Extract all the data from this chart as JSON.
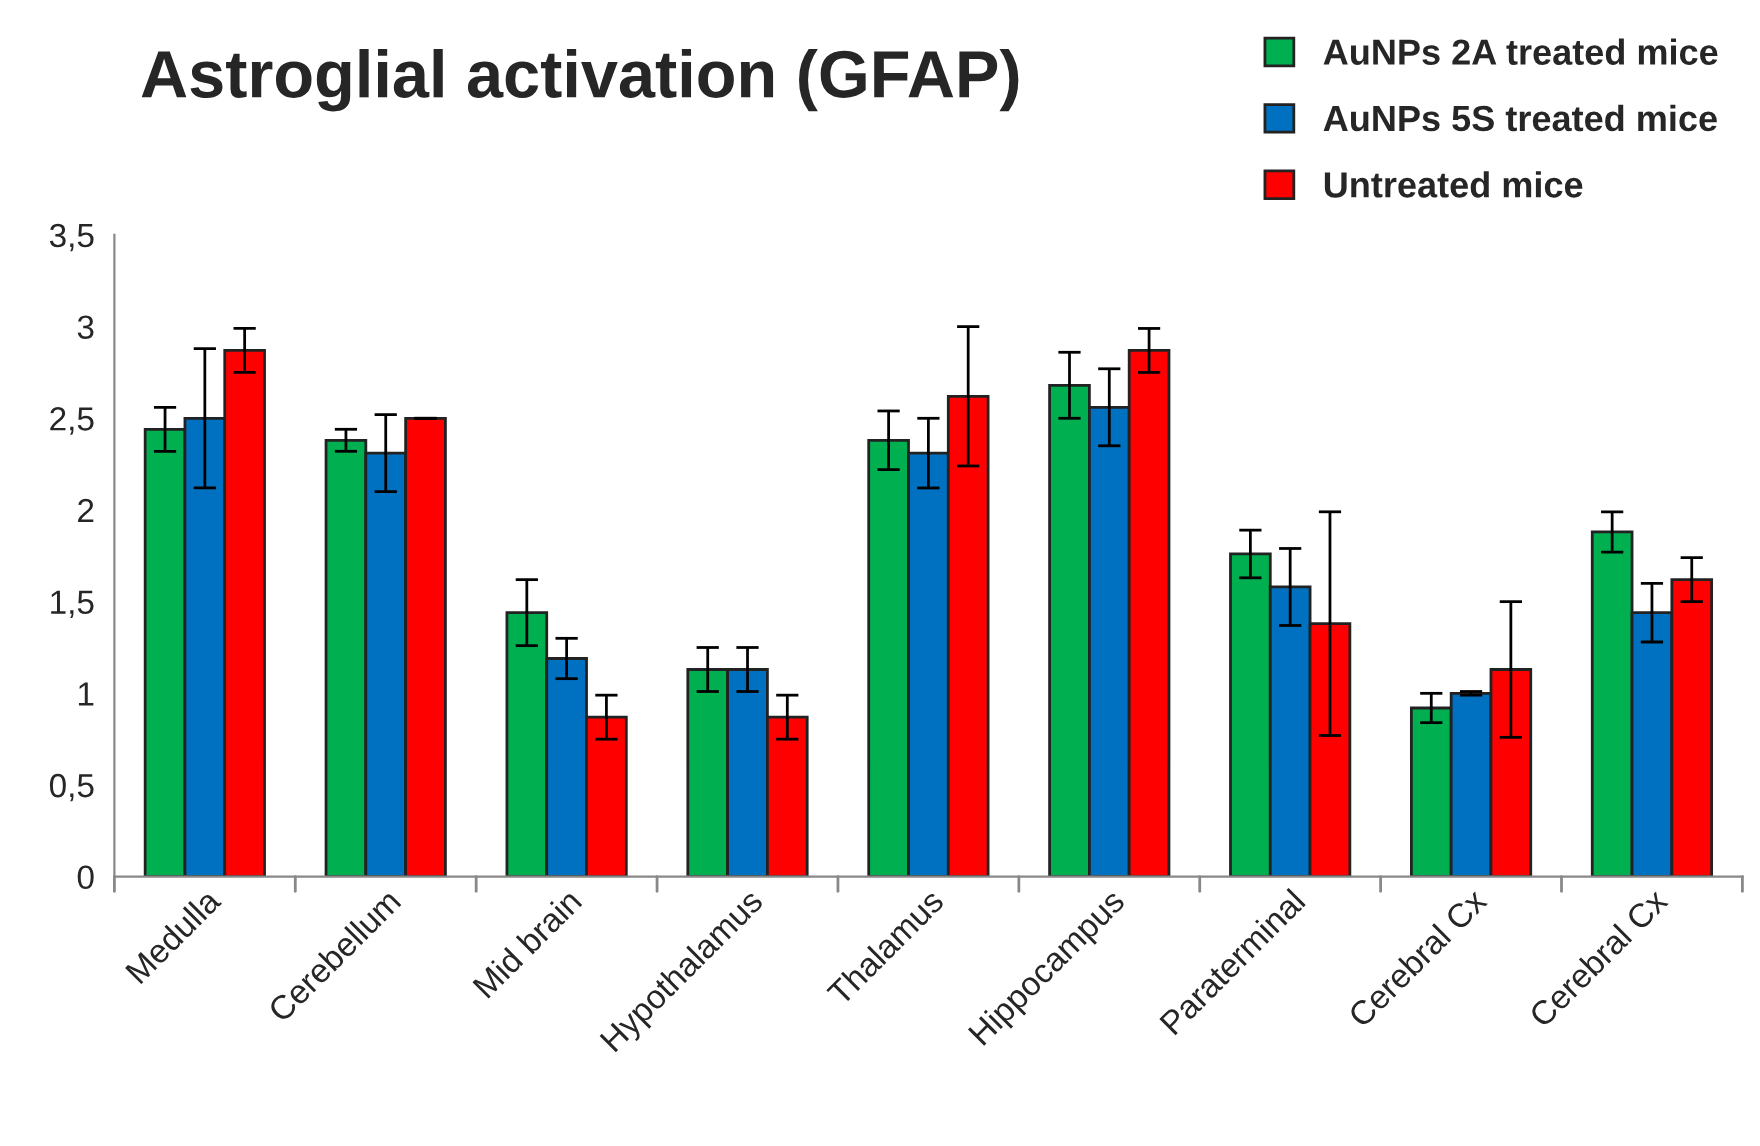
{
  "chart_data": {
    "type": "bar",
    "title": "Astroglial activation (GFAP)",
    "categories": [
      "Medulla",
      "Cerebellum",
      "Mid brain",
      "Hypothalamus",
      "Thalamus",
      "Hippocampus",
      "Paraterminal",
      "Cerebral Cx",
      "Cerebral Cx"
    ],
    "series": [
      {
        "name": "AuNPs 2A treated mice",
        "color": "#00b050",
        "values": [
          2.44,
          2.38,
          1.44,
          1.13,
          2.38,
          2.68,
          1.76,
          0.92,
          1.88
        ],
        "errors": [
          0.12,
          0.06,
          0.18,
          0.12,
          0.16,
          0.18,
          0.13,
          0.08,
          0.11
        ]
      },
      {
        "name": "AuNPs 5S treated mice",
        "color": "#0070c0",
        "values": [
          2.5,
          2.31,
          1.19,
          1.13,
          2.31,
          2.56,
          1.58,
          1.0,
          1.44
        ],
        "errors": [
          0.38,
          0.21,
          0.11,
          0.12,
          0.19,
          0.21,
          0.21,
          0.01,
          0.16
        ]
      },
      {
        "name": "Untreated mice",
        "color": "#ff0000",
        "values": [
          2.87,
          2.5,
          0.87,
          0.87,
          2.62,
          2.87,
          1.38,
          1.13,
          1.62
        ],
        "errors": [
          0.12,
          0,
          0.12,
          0.12,
          0.38,
          0.12,
          0.61,
          0.37,
          0.12
        ]
      }
    ],
    "ylim": [
      0,
      3.5
    ],
    "yticks": [
      0,
      {
        "value": 0.5,
        "label": "0,5"
      },
      1,
      {
        "value": 1.5,
        "label": "1,5"
      },
      2,
      {
        "value": 2.5,
        "label": "2,5"
      },
      3,
      {
        "value": 3.5,
        "label": "3,5"
      }
    ],
    "grid": false,
    "legend": "top right"
  }
}
